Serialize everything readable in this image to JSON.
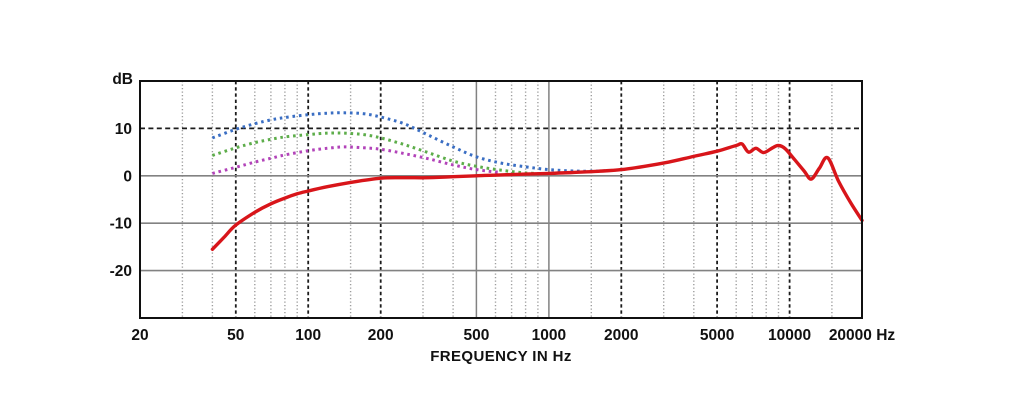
{
  "chart_data": {
    "type": "line",
    "title": "",
    "xlabel": "FREQUENCY IN Hz",
    "ylabel": "dB",
    "x_scale": "log",
    "x_range": [
      20,
      20000
    ],
    "y_range": [
      -30,
      20
    ],
    "legend": "none",
    "grid": {
      "y_lines": [
        {
          "db": 10,
          "style": "dashed"
        },
        {
          "db": 0,
          "style": "solid"
        },
        {
          "db": -10,
          "style": "solid"
        },
        {
          "db": -20,
          "style": "solid"
        }
      ],
      "x_lines": [
        {
          "f": 30,
          "style": "dotted"
        },
        {
          "f": 40,
          "style": "dotted"
        },
        {
          "f": 50,
          "style": "dashed"
        },
        {
          "f": 60,
          "style": "dotted"
        },
        {
          "f": 70,
          "style": "dotted"
        },
        {
          "f": 80,
          "style": "dotted"
        },
        {
          "f": 90,
          "style": "dotted"
        },
        {
          "f": 100,
          "style": "dashed"
        },
        {
          "f": 150,
          "style": "dotted"
        },
        {
          "f": 200,
          "style": "dashed"
        },
        {
          "f": 300,
          "style": "dotted"
        },
        {
          "f": 400,
          "style": "dotted"
        },
        {
          "f": 500,
          "style": "solid"
        },
        {
          "f": 600,
          "style": "dotted"
        },
        {
          "f": 700,
          "style": "dotted"
        },
        {
          "f": 800,
          "style": "dotted"
        },
        {
          "f": 900,
          "style": "dotted"
        },
        {
          "f": 1000,
          "style": "solid"
        },
        {
          "f": 1500,
          "style": "dotted"
        },
        {
          "f": 2000,
          "style": "dashed"
        },
        {
          "f": 3000,
          "style": "dotted"
        },
        {
          "f": 4000,
          "style": "dotted"
        },
        {
          "f": 5000,
          "style": "dashed"
        },
        {
          "f": 6000,
          "style": "dotted"
        },
        {
          "f": 7000,
          "style": "dotted"
        },
        {
          "f": 8000,
          "style": "dotted"
        },
        {
          "f": 9000,
          "style": "dotted"
        },
        {
          "f": 10000,
          "style": "dashed"
        },
        {
          "f": 15000,
          "style": "dotted"
        }
      ]
    },
    "x_tick_labels": [
      {
        "f": 20,
        "label": "20"
      },
      {
        "f": 50,
        "label": "50"
      },
      {
        "f": 100,
        "label": "100"
      },
      {
        "f": 200,
        "label": "200"
      },
      {
        "f": 500,
        "label": "500"
      },
      {
        "f": 1000,
        "label": "1000"
      },
      {
        "f": 2000,
        "label": "2000"
      },
      {
        "f": 5000,
        "label": "5000"
      },
      {
        "f": 10000,
        "label": "10000"
      },
      {
        "f": 20000,
        "label": "20000 Hz"
      }
    ],
    "y_tick_labels": [
      {
        "db": 10,
        "label": "10"
      },
      {
        "db": 0,
        "label": "0"
      },
      {
        "db": -10,
        "label": "-10"
      },
      {
        "db": -20,
        "label": "-20"
      }
    ],
    "colors": {
      "background": "#ffffff",
      "frame": "#101010",
      "grid_dashed": "#1c1c1c",
      "grid_dotted": "#9d9d9d",
      "grid_solid": "#828282",
      "label": "#111111",
      "red": "#d8151a",
      "blue": "#3a6ec3",
      "green": "#5dad4a",
      "magenta": "#b243b9"
    },
    "series": [
      {
        "name": "curve-magenta-dotted",
        "color_key": "magenta",
        "line": "dotted",
        "points": [
          [
            40,
            0.5
          ],
          [
            50,
            1.8
          ],
          [
            60,
            2.9
          ],
          [
            70,
            3.7
          ],
          [
            80,
            4.4
          ],
          [
            100,
            5.3
          ],
          [
            120,
            5.8
          ],
          [
            140,
            6.1
          ],
          [
            170,
            5.9
          ],
          [
            200,
            5.6
          ],
          [
            250,
            4.7
          ],
          [
            315,
            3.6
          ],
          [
            400,
            2.3
          ],
          [
            500,
            1.3
          ],
          [
            630,
            0.7
          ]
        ]
      },
      {
        "name": "curve-green-dotted",
        "color_key": "green",
        "line": "dotted",
        "points": [
          [
            40,
            4.3
          ],
          [
            50,
            5.9
          ],
          [
            60,
            7.0
          ],
          [
            70,
            7.7
          ],
          [
            80,
            8.2
          ],
          [
            100,
            8.7
          ],
          [
            120,
            9.0
          ],
          [
            140,
            9.0
          ],
          [
            170,
            8.7
          ],
          [
            200,
            8.0
          ],
          [
            250,
            6.6
          ],
          [
            315,
            4.9
          ],
          [
            400,
            3.1
          ],
          [
            500,
            2.0
          ],
          [
            630,
            1.2
          ],
          [
            800,
            0.6
          ],
          [
            950,
            0.45
          ]
        ]
      },
      {
        "name": "curve-blue-dotted",
        "color_key": "blue",
        "line": "dotted",
        "points": [
          [
            40,
            8.0
          ],
          [
            50,
            9.8
          ],
          [
            60,
            11.0
          ],
          [
            70,
            11.8
          ],
          [
            80,
            12.3
          ],
          [
            100,
            12.9
          ],
          [
            120,
            13.2
          ],
          [
            140,
            13.3
          ],
          [
            170,
            13.1
          ],
          [
            200,
            12.4
          ],
          [
            250,
            11.0
          ],
          [
            315,
            8.6
          ],
          [
            400,
            6.1
          ],
          [
            500,
            4.0
          ],
          [
            630,
            2.7
          ],
          [
            800,
            1.9
          ],
          [
            1000,
            1.3
          ],
          [
            1300,
            1.0
          ],
          [
            1600,
            1.0
          ],
          [
            1900,
            1.2
          ]
        ]
      },
      {
        "name": "curve-red-solid",
        "color_key": "red",
        "line": "solid",
        "points": [
          [
            40,
            -15.5
          ],
          [
            45,
            -12.8
          ],
          [
            50,
            -10.4
          ],
          [
            60,
            -7.7
          ],
          [
            70,
            -5.9
          ],
          [
            80,
            -4.7
          ],
          [
            90,
            -3.8
          ],
          [
            100,
            -3.2
          ],
          [
            120,
            -2.3
          ],
          [
            150,
            -1.4
          ],
          [
            200,
            -0.5
          ],
          [
            250,
            -0.4
          ],
          [
            315,
            -0.4
          ],
          [
            400,
            -0.2
          ],
          [
            500,
            0.0
          ],
          [
            630,
            0.2
          ],
          [
            800,
            0.35
          ],
          [
            1000,
            0.5
          ],
          [
            1250,
            0.7
          ],
          [
            1600,
            0.95
          ],
          [
            2000,
            1.3
          ],
          [
            2500,
            2.0
          ],
          [
            3150,
            2.9
          ],
          [
            4000,
            4.1
          ],
          [
            5000,
            5.2
          ],
          [
            6000,
            6.4
          ],
          [
            6350,
            6.7
          ],
          [
            6750,
            5.0
          ],
          [
            7250,
            5.8
          ],
          [
            7800,
            4.9
          ],
          [
            8500,
            5.9
          ],
          [
            9000,
            6.4
          ],
          [
            9600,
            5.7
          ],
          [
            10500,
            3.4
          ],
          [
            11500,
            1.0
          ],
          [
            12300,
            -0.7
          ],
          [
            13300,
            1.6
          ],
          [
            14400,
            3.8
          ],
          [
            16000,
            -1.2
          ],
          [
            18000,
            -5.8
          ],
          [
            20000,
            -9.4
          ]
        ]
      }
    ]
  }
}
